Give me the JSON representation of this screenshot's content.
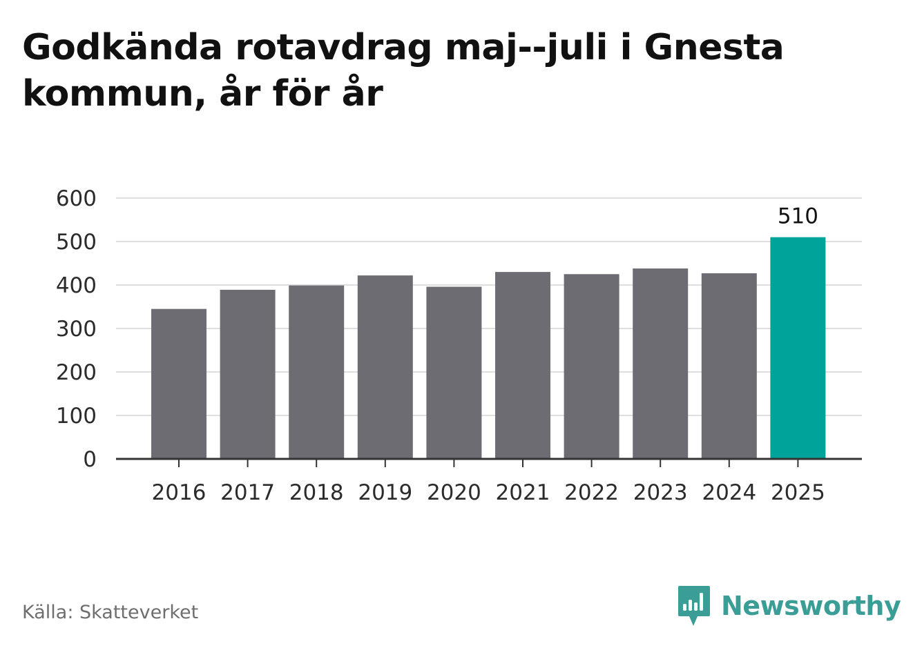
{
  "title": "Godkända rotavdrag maj--juli i Gnesta kommun, år för år",
  "source": "Källa: Skatteverket",
  "brand": {
    "name": "Newsworthy",
    "icon": "newsworthy-logo-icon",
    "color": "#3a9e96"
  },
  "colors": {
    "bar": "#6d6c72",
    "highlight": "#00a399",
    "grid": "#dedede",
    "axis": "#333333"
  },
  "chart_data": {
    "type": "bar",
    "title": "Godkända rotavdrag maj--juli i Gnesta kommun, år för år",
    "categories": [
      "2016",
      "2017",
      "2018",
      "2019",
      "2020",
      "2021",
      "2022",
      "2023",
      "2024",
      "2025"
    ],
    "values": [
      345,
      389,
      399,
      422,
      396,
      430,
      425,
      438,
      427,
      510
    ],
    "highlight_index": 9,
    "data_labels": [
      {
        "index": 9,
        "text": "510"
      }
    ],
    "ylim": [
      0,
      600
    ],
    "yticks": [
      0,
      100,
      200,
      300,
      400,
      500,
      600
    ],
    "xlabel": "",
    "ylabel": "",
    "grid": true
  }
}
